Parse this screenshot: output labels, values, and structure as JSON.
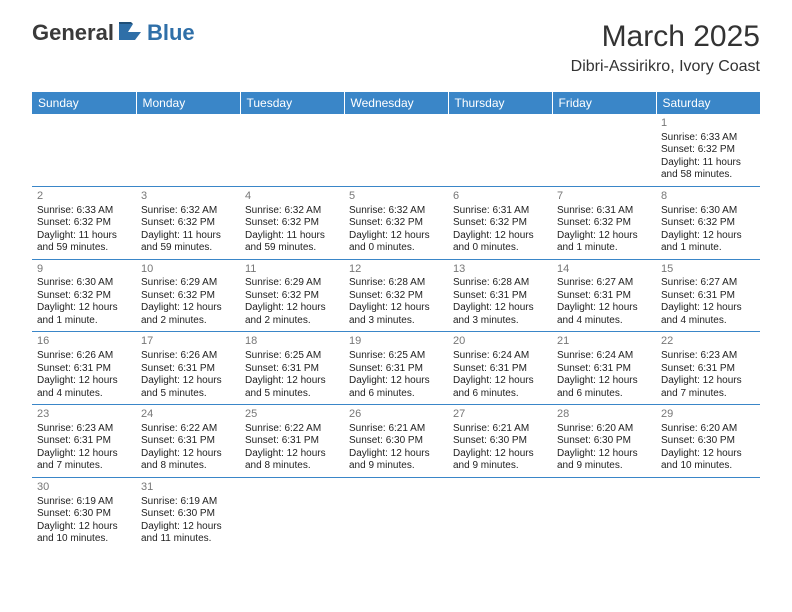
{
  "logo": {
    "part1": "General",
    "part2": "Blue"
  },
  "title": "March 2025",
  "location": "Dibri-Assirikro, Ivory Coast",
  "colors": {
    "header_bg": "#3a86c8",
    "header_text": "#ffffff",
    "border": "#3a86c8",
    "daynum": "#777777",
    "body_text": "#222222",
    "logo_gray": "#3a3a3a",
    "logo_blue": "#2f6fa8"
  },
  "day_headers": [
    "Sunday",
    "Monday",
    "Tuesday",
    "Wednesday",
    "Thursday",
    "Friday",
    "Saturday"
  ],
  "weeks": [
    [
      null,
      null,
      null,
      null,
      null,
      null,
      {
        "n": "1",
        "sr": "Sunrise: 6:33 AM",
        "ss": "Sunset: 6:32 PM",
        "dl": "Daylight: 11 hours and 58 minutes."
      }
    ],
    [
      {
        "n": "2",
        "sr": "Sunrise: 6:33 AM",
        "ss": "Sunset: 6:32 PM",
        "dl": "Daylight: 11 hours and 59 minutes."
      },
      {
        "n": "3",
        "sr": "Sunrise: 6:32 AM",
        "ss": "Sunset: 6:32 PM",
        "dl": "Daylight: 11 hours and 59 minutes."
      },
      {
        "n": "4",
        "sr": "Sunrise: 6:32 AM",
        "ss": "Sunset: 6:32 PM",
        "dl": "Daylight: 11 hours and 59 minutes."
      },
      {
        "n": "5",
        "sr": "Sunrise: 6:32 AM",
        "ss": "Sunset: 6:32 PM",
        "dl": "Daylight: 12 hours and 0 minutes."
      },
      {
        "n": "6",
        "sr": "Sunrise: 6:31 AM",
        "ss": "Sunset: 6:32 PM",
        "dl": "Daylight: 12 hours and 0 minutes."
      },
      {
        "n": "7",
        "sr": "Sunrise: 6:31 AM",
        "ss": "Sunset: 6:32 PM",
        "dl": "Daylight: 12 hours and 1 minute."
      },
      {
        "n": "8",
        "sr": "Sunrise: 6:30 AM",
        "ss": "Sunset: 6:32 PM",
        "dl": "Daylight: 12 hours and 1 minute."
      }
    ],
    [
      {
        "n": "9",
        "sr": "Sunrise: 6:30 AM",
        "ss": "Sunset: 6:32 PM",
        "dl": "Daylight: 12 hours and 1 minute."
      },
      {
        "n": "10",
        "sr": "Sunrise: 6:29 AM",
        "ss": "Sunset: 6:32 PM",
        "dl": "Daylight: 12 hours and 2 minutes."
      },
      {
        "n": "11",
        "sr": "Sunrise: 6:29 AM",
        "ss": "Sunset: 6:32 PM",
        "dl": "Daylight: 12 hours and 2 minutes."
      },
      {
        "n": "12",
        "sr": "Sunrise: 6:28 AM",
        "ss": "Sunset: 6:32 PM",
        "dl": "Daylight: 12 hours and 3 minutes."
      },
      {
        "n": "13",
        "sr": "Sunrise: 6:28 AM",
        "ss": "Sunset: 6:31 PM",
        "dl": "Daylight: 12 hours and 3 minutes."
      },
      {
        "n": "14",
        "sr": "Sunrise: 6:27 AM",
        "ss": "Sunset: 6:31 PM",
        "dl": "Daylight: 12 hours and 4 minutes."
      },
      {
        "n": "15",
        "sr": "Sunrise: 6:27 AM",
        "ss": "Sunset: 6:31 PM",
        "dl": "Daylight: 12 hours and 4 minutes."
      }
    ],
    [
      {
        "n": "16",
        "sr": "Sunrise: 6:26 AM",
        "ss": "Sunset: 6:31 PM",
        "dl": "Daylight: 12 hours and 4 minutes."
      },
      {
        "n": "17",
        "sr": "Sunrise: 6:26 AM",
        "ss": "Sunset: 6:31 PM",
        "dl": "Daylight: 12 hours and 5 minutes."
      },
      {
        "n": "18",
        "sr": "Sunrise: 6:25 AM",
        "ss": "Sunset: 6:31 PM",
        "dl": "Daylight: 12 hours and 5 minutes."
      },
      {
        "n": "19",
        "sr": "Sunrise: 6:25 AM",
        "ss": "Sunset: 6:31 PM",
        "dl": "Daylight: 12 hours and 6 minutes."
      },
      {
        "n": "20",
        "sr": "Sunrise: 6:24 AM",
        "ss": "Sunset: 6:31 PM",
        "dl": "Daylight: 12 hours and 6 minutes."
      },
      {
        "n": "21",
        "sr": "Sunrise: 6:24 AM",
        "ss": "Sunset: 6:31 PM",
        "dl": "Daylight: 12 hours and 6 minutes."
      },
      {
        "n": "22",
        "sr": "Sunrise: 6:23 AM",
        "ss": "Sunset: 6:31 PM",
        "dl": "Daylight: 12 hours and 7 minutes."
      }
    ],
    [
      {
        "n": "23",
        "sr": "Sunrise: 6:23 AM",
        "ss": "Sunset: 6:31 PM",
        "dl": "Daylight: 12 hours and 7 minutes."
      },
      {
        "n": "24",
        "sr": "Sunrise: 6:22 AM",
        "ss": "Sunset: 6:31 PM",
        "dl": "Daylight: 12 hours and 8 minutes."
      },
      {
        "n": "25",
        "sr": "Sunrise: 6:22 AM",
        "ss": "Sunset: 6:31 PM",
        "dl": "Daylight: 12 hours and 8 minutes."
      },
      {
        "n": "26",
        "sr": "Sunrise: 6:21 AM",
        "ss": "Sunset: 6:30 PM",
        "dl": "Daylight: 12 hours and 9 minutes."
      },
      {
        "n": "27",
        "sr": "Sunrise: 6:21 AM",
        "ss": "Sunset: 6:30 PM",
        "dl": "Daylight: 12 hours and 9 minutes."
      },
      {
        "n": "28",
        "sr": "Sunrise: 6:20 AM",
        "ss": "Sunset: 6:30 PM",
        "dl": "Daylight: 12 hours and 9 minutes."
      },
      {
        "n": "29",
        "sr": "Sunrise: 6:20 AM",
        "ss": "Sunset: 6:30 PM",
        "dl": "Daylight: 12 hours and 10 minutes."
      }
    ],
    [
      {
        "n": "30",
        "sr": "Sunrise: 6:19 AM",
        "ss": "Sunset: 6:30 PM",
        "dl": "Daylight: 12 hours and 10 minutes."
      },
      {
        "n": "31",
        "sr": "Sunrise: 6:19 AM",
        "ss": "Sunset: 6:30 PM",
        "dl": "Daylight: 12 hours and 11 minutes."
      },
      null,
      null,
      null,
      null,
      null
    ]
  ]
}
